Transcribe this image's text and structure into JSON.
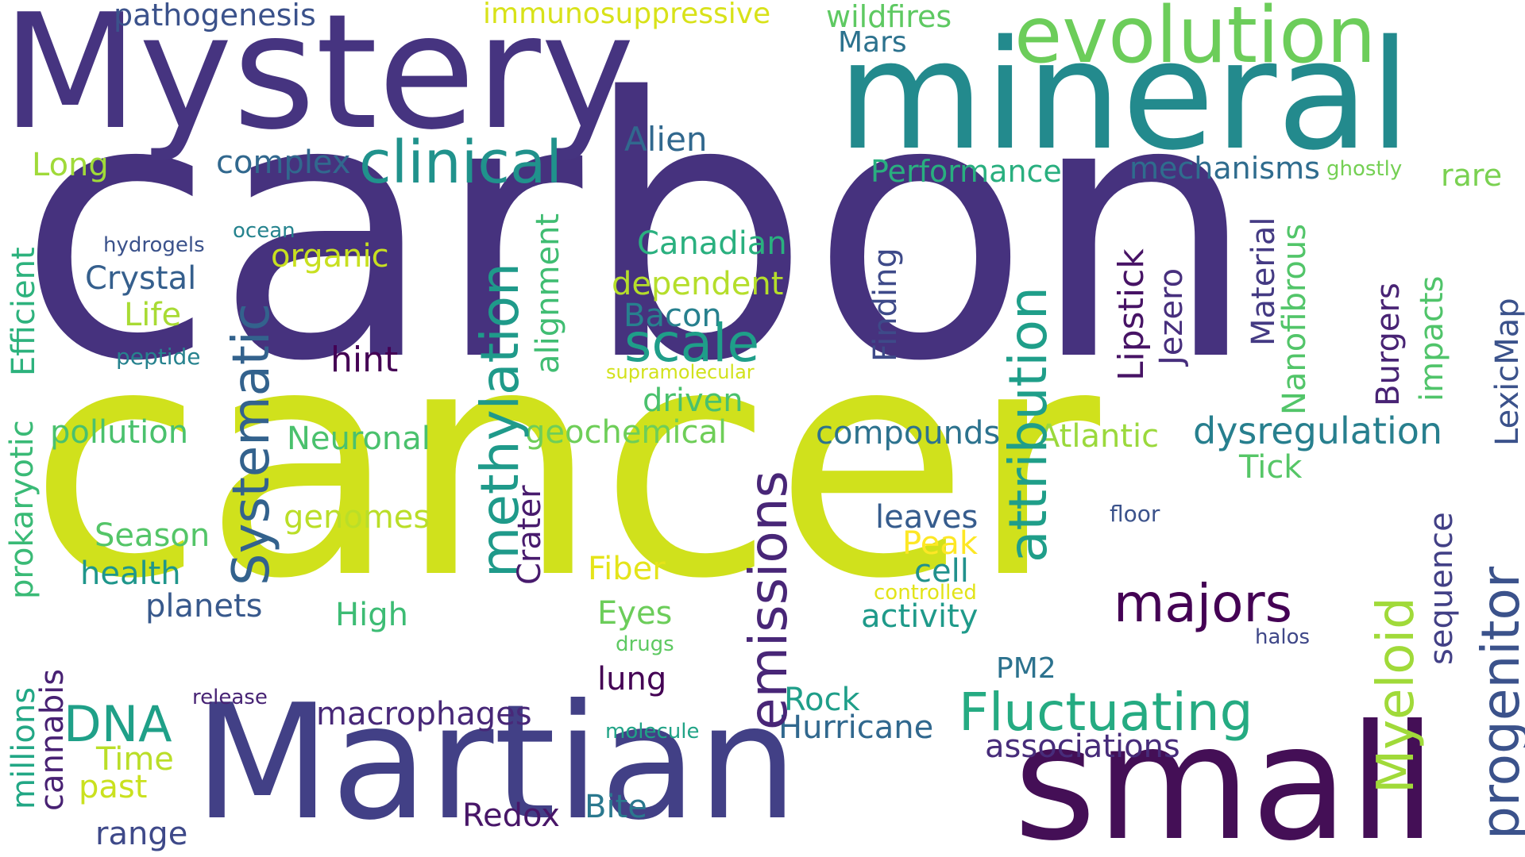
{
  "words": [
    {
      "text": "carbon",
      "color": "#46327e"
    },
    {
      "text": "cancer",
      "color": "#d0e11c"
    },
    {
      "text": "Mystery",
      "color": "#463480"
    },
    {
      "text": "mineral",
      "color": "#238a8d"
    },
    {
      "text": "Martian",
      "color": "#424086"
    },
    {
      "text": "small",
      "color": "#440f56"
    },
    {
      "text": "evolution",
      "color": "#6ccd5a"
    },
    {
      "text": "pathogenesis",
      "color": "#3b528b"
    },
    {
      "text": "immunosuppressive",
      "color": "#d8e219"
    },
    {
      "text": "wildfires",
      "color": "#5ec962"
    },
    {
      "text": "Mars",
      "color": "#2c728e"
    },
    {
      "text": "Long",
      "color": "#a0da39"
    },
    {
      "text": "complex",
      "color": "#31688e"
    },
    {
      "text": "clinical",
      "color": "#20928c"
    },
    {
      "text": "Alien",
      "color": "#31688e"
    },
    {
      "text": "Performance",
      "color": "#29af7f"
    },
    {
      "text": "mechanisms",
      "color": "#2f6c8e"
    },
    {
      "text": "ghostly",
      "color": "#75d054"
    },
    {
      "text": "rare",
      "color": "#7ad151"
    },
    {
      "text": "hydrogels",
      "color": "#3b528b"
    },
    {
      "text": "ocean",
      "color": "#25838e"
    },
    {
      "text": "Crystal",
      "color": "#355f8d"
    },
    {
      "text": "organic",
      "color": "#c8e020"
    },
    {
      "text": "Canadian",
      "color": "#2ab07f"
    },
    {
      "text": "dependent",
      "color": "#b5de2b"
    },
    {
      "text": "Life",
      "color": "#a8db34"
    },
    {
      "text": "Bacon",
      "color": "#27808e"
    },
    {
      "text": "scale",
      "color": "#1f9e89"
    },
    {
      "text": "peptide",
      "color": "#26828e"
    },
    {
      "text": "hint",
      "color": "#440154"
    },
    {
      "text": "supramolecular",
      "color": "#d2e21b"
    },
    {
      "text": "driven",
      "color": "#4ac16d"
    },
    {
      "text": "pollution",
      "color": "#4ac16d"
    },
    {
      "text": "Neuronal",
      "color": "#4ac16d"
    },
    {
      "text": "geochemical",
      "color": "#6ece58"
    },
    {
      "text": "compounds",
      "color": "#2c728e"
    },
    {
      "text": "Atlantic",
      "color": "#9bd93c"
    },
    {
      "text": "dysregulation",
      "color": "#277f8e"
    },
    {
      "text": "Tick",
      "color": "#56c667"
    },
    {
      "text": "leaves",
      "color": "#365c8d"
    },
    {
      "text": "floor",
      "color": "#3b528b"
    },
    {
      "text": "Season",
      "color": "#54c568"
    },
    {
      "text": "genomes",
      "color": "#bade28"
    },
    {
      "text": "Peak",
      "color": "#fde725"
    },
    {
      "text": "cell",
      "color": "#21918c"
    },
    {
      "text": "health",
      "color": "#1f968b"
    },
    {
      "text": "Fiber",
      "color": "#e5e419"
    },
    {
      "text": "controlled",
      "color": "#e2e418"
    },
    {
      "text": "majors",
      "color": "#440154"
    },
    {
      "text": "planets",
      "color": "#38598c"
    },
    {
      "text": "High",
      "color": "#3dbc74"
    },
    {
      "text": "Eyes",
      "color": "#6ccd5a"
    },
    {
      "text": "activity",
      "color": "#1f9a8a"
    },
    {
      "text": "drugs",
      "color": "#5ec962"
    },
    {
      "text": "halos",
      "color": "#3f4788"
    },
    {
      "text": "DNA",
      "color": "#1fa088"
    },
    {
      "text": "lung",
      "color": "#440154"
    },
    {
      "text": "PM2",
      "color": "#2c728e"
    },
    {
      "text": "release",
      "color": "#482475"
    },
    {
      "text": "macrophages",
      "color": "#482878"
    },
    {
      "text": "Rock",
      "color": "#1f9e89"
    },
    {
      "text": "Fluctuating",
      "color": "#25ab82"
    },
    {
      "text": "molecule",
      "color": "#20a386"
    },
    {
      "text": "Hurricane",
      "color": "#31688e"
    },
    {
      "text": "associations",
      "color": "#472c7a"
    },
    {
      "text": "Time",
      "color": "#bade28"
    },
    {
      "text": "past",
      "color": "#cae11f"
    },
    {
      "text": "Bite",
      "color": "#2a788e"
    },
    {
      "text": "Redox",
      "color": "#481668"
    },
    {
      "text": "range",
      "color": "#3e4989"
    },
    {
      "text": "Systematic",
      "color": "#33628d"
    },
    {
      "text": "methylation",
      "color": "#1f9a8a"
    },
    {
      "text": "alignment",
      "color": "#40bd72"
    },
    {
      "text": "emissions",
      "color": "#482677"
    },
    {
      "text": "Crater",
      "color": "#481b6d"
    },
    {
      "text": "Finding",
      "color": "#3e4a89"
    },
    {
      "text": "attribution",
      "color": "#1f9e89"
    },
    {
      "text": "Lipstick",
      "color": "#471365"
    },
    {
      "text": "Jezero",
      "color": "#472f7d"
    },
    {
      "text": "Material",
      "color": "#443a83"
    },
    {
      "text": "Nanofibrous",
      "color": "#52c569"
    },
    {
      "text": "Burgers",
      "color": "#482374"
    },
    {
      "text": "impacts",
      "color": "#50c46a"
    },
    {
      "text": "LexicMap",
      "color": "#3b528b"
    },
    {
      "text": "Myeloid",
      "color": "#a0da39"
    },
    {
      "text": "sequence",
      "color": "#424086"
    },
    {
      "text": "progenitor",
      "color": "#3b528b"
    },
    {
      "text": "Efficient",
      "color": "#2db27d"
    },
    {
      "text": "prokaryotic",
      "color": "#3aba76"
    },
    {
      "text": "millions",
      "color": "#22a785"
    },
    {
      "text": "cannabis",
      "color": "#482173"
    }
  ]
}
